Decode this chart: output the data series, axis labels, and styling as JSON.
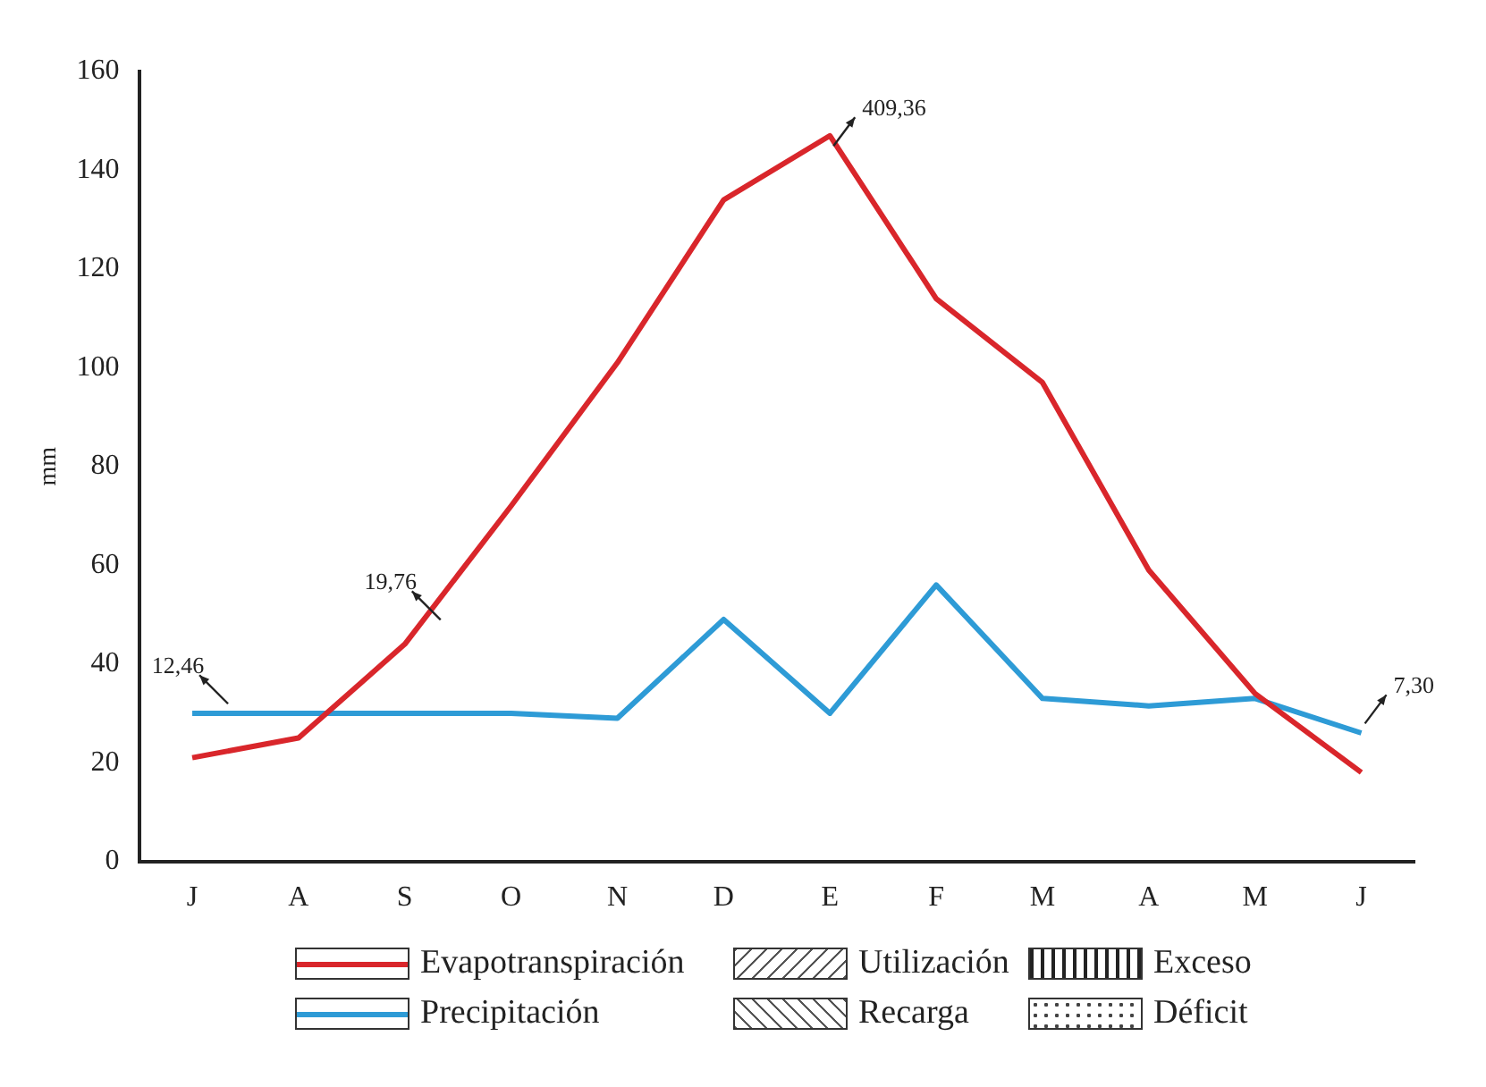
{
  "chart_data": {
    "type": "line",
    "ylabel": "mm",
    "categories": [
      "J",
      "A",
      "S",
      "O",
      "N",
      "D",
      "E",
      "F",
      "M",
      "A",
      "M",
      "J"
    ],
    "series": [
      {
        "name": "Evapotranspiración",
        "color": "#d9262b",
        "values": [
          21,
          25,
          44,
          72,
          101,
          134,
          147,
          114,
          97,
          59,
          34,
          18
        ]
      },
      {
        "name": "Precipitación",
        "color": "#2e9bd6",
        "values": [
          30,
          30,
          30,
          30,
          29,
          49,
          30,
          56,
          33,
          31.5,
          33,
          26
        ]
      }
    ],
    "ylim": [
      0,
      160
    ],
    "yticks": [
      0,
      20,
      40,
      60,
      80,
      100,
      120,
      140,
      160
    ],
    "grid": false,
    "legend": "bottom",
    "marker": "none",
    "line_style": "solid",
    "annotations": [
      "12,46",
      "19,76",
      "409,36",
      "7,30",
      "Utilización",
      "Recarga",
      "Exceso",
      "Déficit"
    ]
  }
}
